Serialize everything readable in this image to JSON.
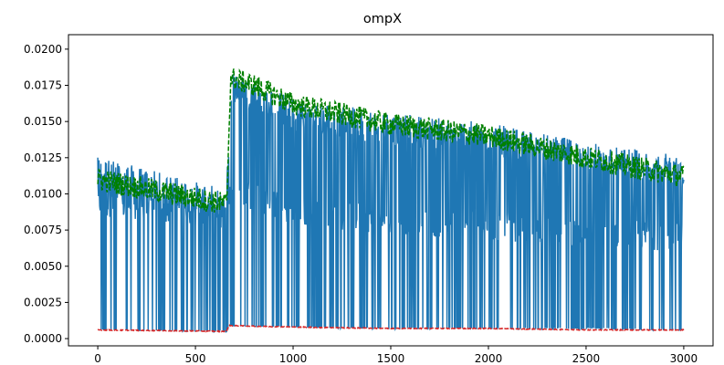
{
  "chart_data": {
    "type": "line",
    "title": "ompX",
    "xlabel": "",
    "ylabel": "",
    "xlim": [
      -150,
      3150
    ],
    "ylim": [
      -0.0005,
      0.021
    ],
    "x_ticks": [
      0,
      500,
      1000,
      1500,
      2000,
      2500,
      3000
    ],
    "x_tick_labels": [
      "0",
      "500",
      "1000",
      "1500",
      "2000",
      "2500",
      "3000"
    ],
    "y_ticks": [
      0.0,
      0.0025,
      0.005,
      0.0075,
      0.01,
      0.0125,
      0.015,
      0.0175,
      0.02
    ],
    "y_tick_labels": [
      "0.0000",
      "0.0025",
      "0.0050",
      "0.0075",
      "0.0100",
      "0.0125",
      "0.0150",
      "0.0175",
      "0.0200"
    ],
    "grid": false,
    "legend": "none",
    "x_range": [
      0,
      3000
    ],
    "series": [
      {
        "color": "#1f77b4",
        "style": "solid",
        "description_points": [
          [
            0,
            0.0125
          ],
          [
            660,
            0.0095
          ],
          [
            680,
            0.0185
          ],
          [
            1000,
            0.0165
          ],
          [
            1500,
            0.0145
          ],
          [
            2000,
            0.0135
          ],
          [
            2500,
            0.0125
          ],
          [
            3000,
            0.0115
          ]
        ],
        "high_level_points": [
          [
            0,
            0.0115
          ],
          [
            660,
            0.0092
          ],
          [
            680,
            0.0175
          ],
          [
            1000,
            0.0155
          ],
          [
            1500,
            0.0145
          ],
          [
            2000,
            0.0138
          ],
          [
            2500,
            0.0125
          ],
          [
            3000,
            0.0115
          ]
        ],
        "mid_level_points": [
          [
            0,
            0.0095
          ],
          [
            660,
            0.0085
          ],
          [
            680,
            0.0105
          ],
          [
            1000,
            0.0088
          ],
          [
            1500,
            0.0082
          ],
          [
            2000,
            0.0078
          ],
          [
            2500,
            0.0074
          ],
          [
            3000,
            0.007
          ]
        ],
        "low_level_points": [
          [
            0,
            0.0006
          ],
          [
            660,
            0.0005
          ],
          [
            680,
            0.0009
          ],
          [
            1000,
            0.0008
          ],
          [
            1500,
            0.0007
          ],
          [
            2000,
            0.0007
          ],
          [
            2500,
            0.0007
          ],
          [
            3000,
            0.0006
          ]
        ]
      },
      {
        "color": "#008000",
        "style": "dashed",
        "level_points": [
          [
            0,
            0.011
          ],
          [
            300,
            0.0102
          ],
          [
            660,
            0.0093
          ],
          [
            680,
            0.018
          ],
          [
            800,
            0.0175
          ],
          [
            1000,
            0.0162
          ],
          [
            1500,
            0.0148
          ],
          [
            2000,
            0.014
          ],
          [
            2500,
            0.0125
          ],
          [
            3000,
            0.0112
          ]
        ],
        "noise_amplitude": 0.0008
      },
      {
        "color": "#d62728",
        "style": "dashed",
        "level_points": [
          [
            0,
            0.0006
          ],
          [
            660,
            0.0005
          ],
          [
            670,
            0.0009
          ],
          [
            1000,
            0.0008
          ],
          [
            1500,
            0.0007
          ],
          [
            2000,
            0.0007
          ],
          [
            2500,
            0.0006
          ],
          [
            3000,
            0.0006
          ]
        ],
        "noise_amplitude": 3e-05
      }
    ]
  }
}
